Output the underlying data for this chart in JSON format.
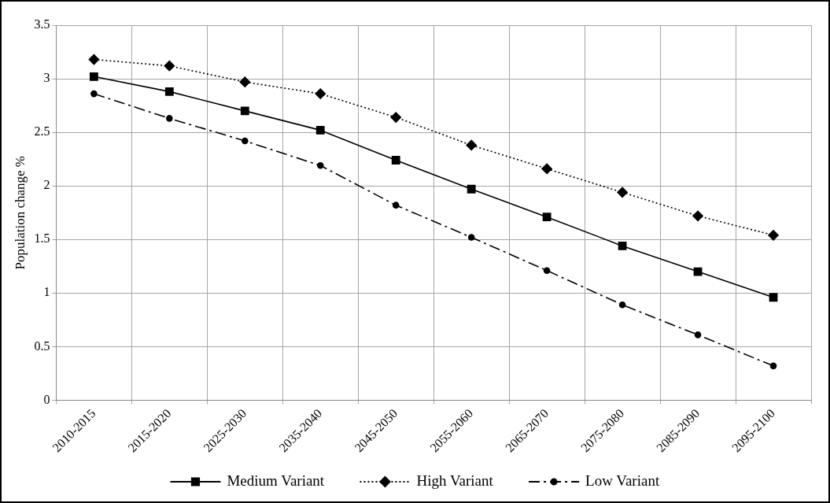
{
  "chart_data": {
    "type": "line",
    "ylabel": "Population change %",
    "categories": [
      "2010-2015",
      "2015-2020",
      "2025-2030",
      "2035-2040",
      "2045-2050",
      "2055-2060",
      "2065-2070",
      "2075-2080",
      "2085-2090",
      "2095-2100"
    ],
    "series": [
      {
        "name": "Medium Variant",
        "color": "#000000",
        "marker": "square",
        "line_style": "solid",
        "values": [
          3.02,
          2.88,
          2.7,
          2.52,
          2.24,
          1.97,
          1.71,
          1.44,
          1.2,
          0.96
        ]
      },
      {
        "name": "High Variant",
        "color": "#000000",
        "marker": "diamond",
        "line_style": "dotted",
        "values": [
          3.18,
          3.12,
          2.97,
          2.86,
          2.64,
          2.38,
          2.16,
          1.94,
          1.72,
          1.54
        ]
      },
      {
        "name": "Low Variant",
        "color": "#000000",
        "marker": "circle",
        "line_style": "dashed",
        "values": [
          2.86,
          2.63,
          2.42,
          2.19,
          1.82,
          1.52,
          1.21,
          0.89,
          0.61,
          0.32
        ]
      }
    ],
    "ylim": [
      0,
      3.5
    ],
    "yticks": [
      0,
      0.5,
      1,
      1.5,
      2,
      2.5,
      3,
      3.5
    ],
    "grid": true,
    "legend": "bottom"
  }
}
